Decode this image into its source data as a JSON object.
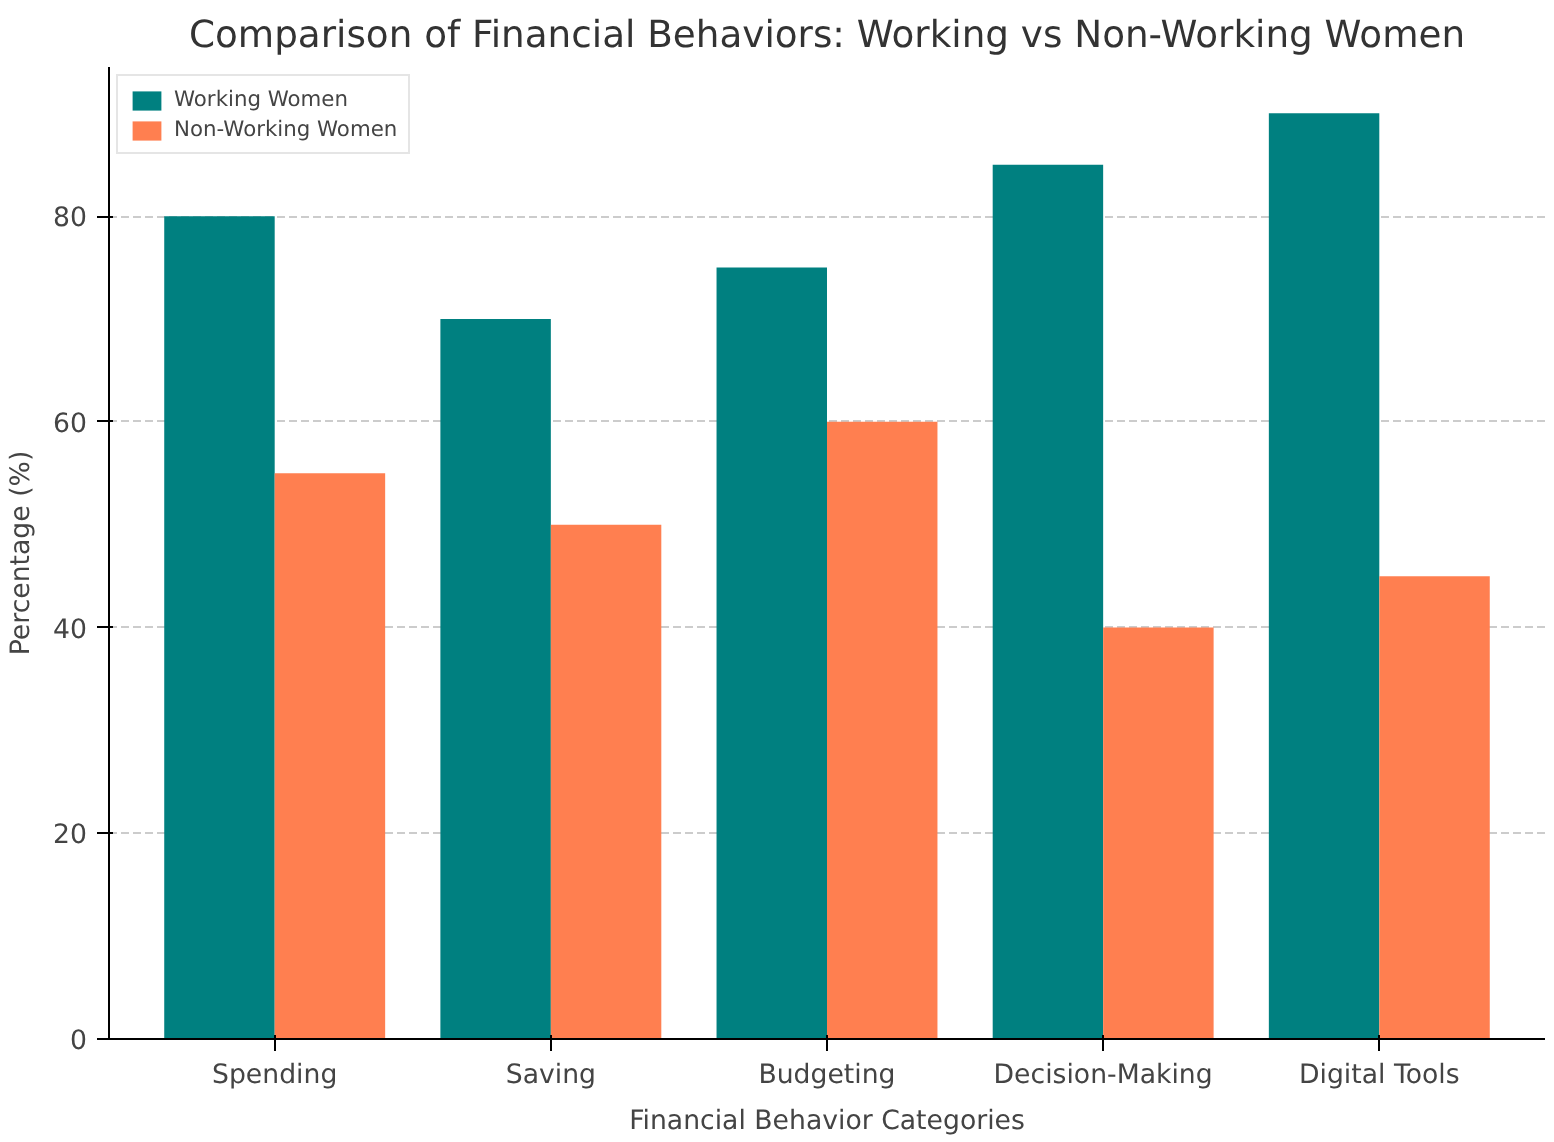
{
  "chart_data": {
    "type": "bar",
    "title": "Comparison of Financial Behaviors: Working vs Non-Working Women",
    "xlabel": "Financial Behavior Categories",
    "ylabel": "Percentage (%)",
    "categories": [
      "Spending",
      "Saving",
      "Budgeting",
      "Decision-Making",
      "Digital Tools"
    ],
    "series": [
      {
        "name": "Working Women",
        "color": "#008080",
        "values": [
          80,
          70,
          75,
          85,
          90
        ]
      },
      {
        "name": "Non-Working Women",
        "color": "#ff7f50",
        "values": [
          55,
          50,
          60,
          40,
          45
        ]
      }
    ],
    "ylim": [
      0,
      94.5
    ],
    "yticks": [
      0,
      20,
      40,
      60,
      80
    ],
    "grid": "y",
    "legend": "top left"
  }
}
